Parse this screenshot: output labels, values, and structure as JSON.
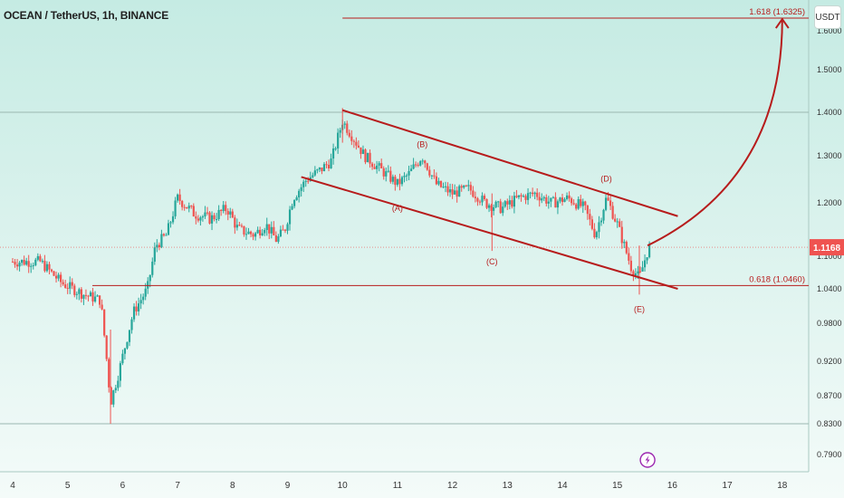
{
  "header": {
    "symbol": "OCEAN / TetherUS, 1h, BINANCE",
    "currency_button": "USDT"
  },
  "colors": {
    "bg_top": "#c5ebe3",
    "bg_bottom": "#f4fbf9",
    "bull": "#26a69a",
    "bear": "#ef5350",
    "drawing": "#b71c1c",
    "axis_text": "#333333",
    "price_tag": "#ef5350",
    "lightning": "#9c27b0"
  },
  "chart_data": {
    "type": "candlestick",
    "title": "OCEAN / TetherUS, 1h, BINANCE",
    "y_ticks": [
      0.79,
      0.83,
      0.87,
      0.92,
      0.98,
      1.04,
      1.1,
      1.2,
      1.3,
      1.4,
      1.5,
      1.6
    ],
    "y_tick_labels": [
      "0.7900",
      "0.8300",
      "0.8700",
      "0.9200",
      "0.9800",
      "1.0400",
      "1.1000",
      "1.2000",
      "1.3000",
      "1.4000",
      "1.5000",
      "1.6000"
    ],
    "x_ticks": [
      4,
      5,
      6,
      7,
      8,
      9,
      10,
      11,
      12,
      13,
      14,
      15,
      16,
      17,
      18
    ],
    "x_tick_labels": [
      "4",
      "5",
      "6",
      "7",
      "8",
      "9",
      "10",
      "11",
      "12",
      "13",
      "14",
      "15",
      "16",
      "17",
      "18"
    ],
    "xlim": [
      4.0,
      18.5
    ],
    "current_price": 1.1168,
    "current_price_label": "1.1168",
    "close_path": [
      [
        4.0,
        1.09
      ],
      [
        4.5,
        1.09
      ],
      [
        4.9,
        1.05
      ],
      [
        5.3,
        1.03
      ],
      [
        5.6,
        1.02
      ],
      [
        5.78,
        0.86
      ],
      [
        5.95,
        0.91
      ],
      [
        6.2,
        1.0
      ],
      [
        6.45,
        1.04
      ],
      [
        6.6,
        1.12
      ],
      [
        6.8,
        1.14
      ],
      [
        7.0,
        1.21
      ],
      [
        7.3,
        1.18
      ],
      [
        7.6,
        1.17
      ],
      [
        7.9,
        1.19
      ],
      [
        8.1,
        1.15
      ],
      [
        8.4,
        1.14
      ],
      [
        8.6,
        1.16
      ],
      [
        8.8,
        1.13
      ],
      [
        8.95,
        1.15
      ],
      [
        9.1,
        1.21
      ],
      [
        9.35,
        1.25
      ],
      [
        9.6,
        1.27
      ],
      [
        9.8,
        1.29
      ],
      [
        10.0,
        1.38
      ],
      [
        10.2,
        1.34
      ],
      [
        10.4,
        1.3
      ],
      [
        10.7,
        1.27
      ],
      [
        11.0,
        1.24
      ],
      [
        11.2,
        1.26
      ],
      [
        11.45,
        1.3
      ],
      [
        11.7,
        1.24
      ],
      [
        12.0,
        1.22
      ],
      [
        12.3,
        1.23
      ],
      [
        12.6,
        1.2
      ],
      [
        12.9,
        1.19
      ],
      [
        13.2,
        1.21
      ],
      [
        13.5,
        1.22
      ],
      [
        13.8,
        1.2
      ],
      [
        14.1,
        1.21
      ],
      [
        14.4,
        1.19
      ],
      [
        14.6,
        1.14
      ],
      [
        14.8,
        1.21
      ],
      [
        15.0,
        1.16
      ],
      [
        15.25,
        1.08
      ],
      [
        15.4,
        1.06
      ],
      [
        15.55,
        1.11
      ],
      [
        15.6,
        1.1168
      ]
    ],
    "spikes": [
      {
        "x": 5.78,
        "low": 0.83,
        "high": 0.97
      },
      {
        "x": 12.72,
        "low": 1.11,
        "high": 1.22
      },
      {
        "x": 15.4,
        "low": 1.03,
        "high": 1.12
      },
      {
        "x": 10.0,
        "low": 1.33,
        "high": 1.41
      }
    ],
    "horizontal_levels": [
      {
        "price": 1.6325,
        "x_start": 10.0,
        "label": "1.618 (1.6325)"
      },
      {
        "price": 1.046,
        "x_start": 5.45,
        "label": "0.618 (1.0460)"
      }
    ],
    "reference_lines": [
      1.4,
      0.83
    ],
    "channel": {
      "upper": [
        [
          10.0,
          1.405
        ],
        [
          16.1,
          1.175
        ]
      ],
      "lower": [
        [
          9.25,
          1.255
        ],
        [
          16.1,
          1.04
        ]
      ]
    },
    "projection_arrow": {
      "start": [
        15.55,
        1.12
      ],
      "control": [
        18.0,
        1.25
      ],
      "end": [
        18.0,
        1.63
      ]
    },
    "wave_labels": [
      {
        "text": "(A)",
        "x": 11.0,
        "price": 1.185
      },
      {
        "text": "(B)",
        "x": 11.45,
        "price": 1.32
      },
      {
        "text": "(C)",
        "x": 12.72,
        "price": 1.085
      },
      {
        "text": "(D)",
        "x": 14.8,
        "price": 1.245
      },
      {
        "text": "(E)",
        "x": 15.4,
        "price": 1.0
      }
    ]
  }
}
